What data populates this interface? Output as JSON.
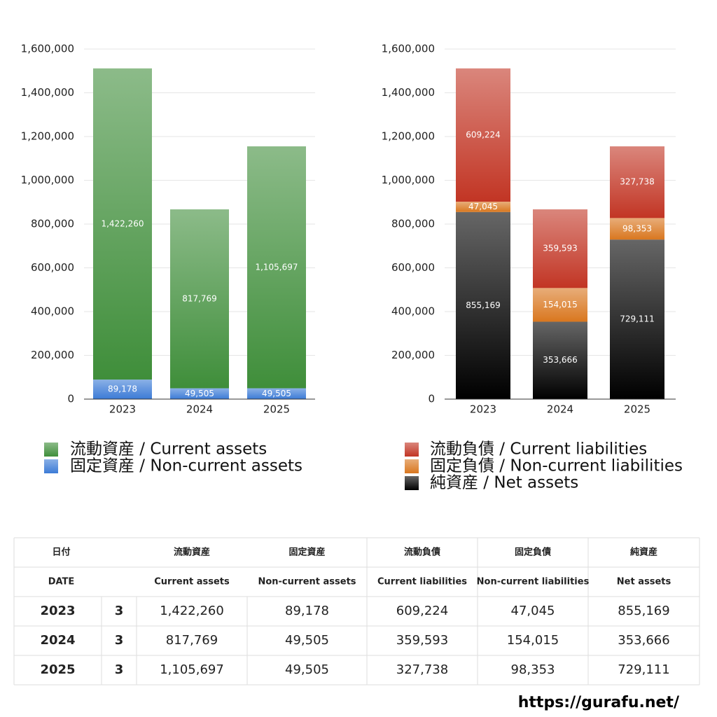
{
  "chart_data": [
    {
      "type": "bar",
      "stacked": true,
      "categories": [
        "2023",
        "2024",
        "2025"
      ],
      "series": [
        {
          "name": "流動資産 / Current assets",
          "color": "#3f8e3a",
          "values": [
            1422260,
            817769,
            1105697
          ],
          "value_labels": [
            "1,422,260",
            "817,769",
            "1,105,697"
          ]
        },
        {
          "name": "固定資産 / Non-current assets",
          "color": "#3c7bd6",
          "values": [
            89178,
            49505,
            49505
          ],
          "value_labels": [
            "89,178",
            "49,505",
            "49,505"
          ]
        }
      ],
      "ylim": [
        0,
        1600000
      ],
      "yticks": [
        0,
        {
          "value": 200000,
          "label": "200,000"
        },
        {
          "value": 400000,
          "label": "400,000"
        },
        {
          "value": 600000,
          "label": "600,000"
        },
        {
          "value": 800000,
          "label": "800,000"
        },
        {
          "value": 1000000,
          "label": "1,000,000"
        },
        {
          "value": 1200000,
          "label": "1,200,000"
        },
        {
          "value": 1400000,
          "label": "1,400,000"
        },
        {
          "value": 1600000,
          "label": "1,600,000"
        }
      ],
      "grid": true,
      "legend": "bottom"
    },
    {
      "type": "bar",
      "stacked": true,
      "categories": [
        "2023",
        "2024",
        "2025"
      ],
      "series": [
        {
          "name": "流動負債 / Current liabilities",
          "color": "#c23524",
          "values": [
            609224,
            359593,
            327738
          ],
          "value_labels": [
            "609,224",
            "359,593",
            "327,738"
          ]
        },
        {
          "name": "固定負債 / Non-current liabilities",
          "color": "#d9771f",
          "values": [
            47045,
            154015,
            98353
          ],
          "value_labels": [
            "47,045",
            "154,015",
            "98,353"
          ]
        },
        {
          "name": "純資産 / Net assets",
          "color": "#000000",
          "values": [
            855169,
            353666,
            729111
          ],
          "value_labels": [
            "855,169",
            "353,666",
            "729,111"
          ]
        }
      ],
      "ylim": [
        0,
        1600000
      ],
      "yticks": [
        0,
        {
          "value": 200000,
          "label": "200,000"
        },
        {
          "value": 400000,
          "label": "400,000"
        },
        {
          "value": 600000,
          "label": "600,000"
        },
        {
          "value": 800000,
          "label": "800,000"
        },
        {
          "value": 1000000,
          "label": "1,000,000"
        },
        {
          "value": 1200000,
          "label": "1,200,000"
        },
        {
          "value": 1400000,
          "label": "1,400,000"
        },
        {
          "value": 1600000,
          "label": "1,600,000"
        }
      ],
      "grid": true,
      "legend": "bottom"
    }
  ],
  "table": {
    "header_jp": [
      "日付",
      "流動資産",
      "固定資産",
      "流動負債",
      "固定負債",
      "純資産"
    ],
    "header_en": [
      "DATE",
      "Current assets",
      "Non-current assets",
      "Current liabilities",
      "Non-current liabilities",
      "Net assets"
    ],
    "rows": [
      [
        "2023",
        "3",
        "1,422,260",
        "89,178",
        "609,224",
        "47,045",
        "855,169"
      ],
      [
        "2024",
        "3",
        "817,769",
        "49,505",
        "359,593",
        "154,015",
        "353,666"
      ],
      [
        "2025",
        "3",
        "1,105,697",
        "49,505",
        "327,738",
        "98,353",
        "729,111"
      ]
    ]
  },
  "footer": "https://gurafu.net/"
}
